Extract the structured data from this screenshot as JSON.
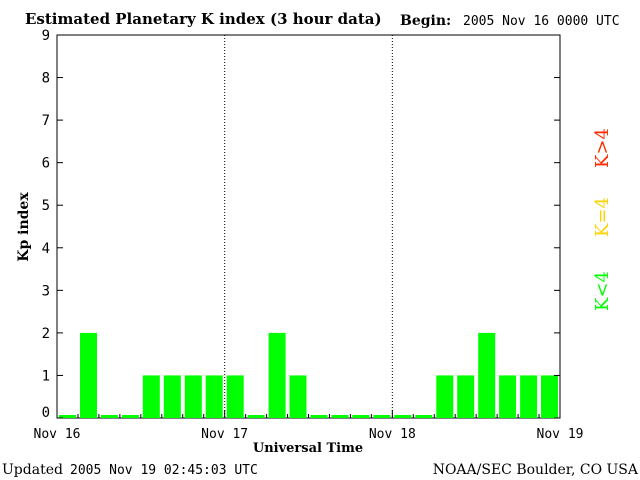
{
  "header": {
    "title": "Estimated Planetary K index (3 hour data)",
    "begin_label": "Begin:",
    "begin_value": "2005 Nov 16 0000 UTC"
  },
  "footer": {
    "updated_label": "Updated",
    "updated_value": "2005 Nov 19 02:45:03 UTC",
    "source": "NOAA/SEC Boulder, CO USA"
  },
  "legend": {
    "high_label": "K>4",
    "mid_label": "K=4",
    "low_label": "K<4",
    "high_color": "#ff2a00",
    "mid_color": "#ffd200",
    "low_color": "#00ff00"
  },
  "chart_data": {
    "type": "bar",
    "xlabel": "Universal Time",
    "ylabel": "Kp index",
    "ylim": [
      0,
      9
    ],
    "yticks": [
      "0",
      "1",
      "2",
      "3",
      "4",
      "5",
      "6",
      "7",
      "8",
      "9"
    ],
    "x_tick_labels": [
      "Nov 16",
      "Nov 17",
      "Nov 18",
      "Nov 19"
    ],
    "values": [
      0,
      2,
      0,
      0,
      1,
      1,
      1,
      1,
      1,
      0,
      2,
      1,
      0,
      0,
      0,
      0,
      0,
      0,
      1,
      1,
      2,
      1,
      1,
      1
    ],
    "bar_color": "#00ff00",
    "grid": false,
    "day_separators": true
  }
}
